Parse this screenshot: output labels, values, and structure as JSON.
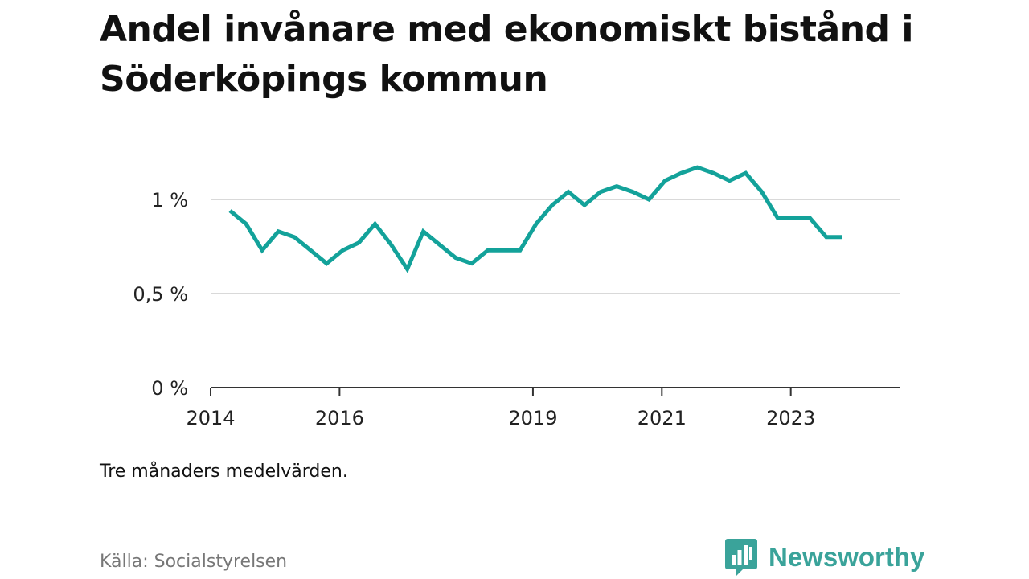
{
  "title": "Andel invånare med ekonomiskt bistånd i Söderköpings kommun",
  "note": "Tre månaders medelvärden.",
  "source": "Källa: Socialstyrelsen",
  "brand": {
    "name": "Newsworthy",
    "icon": "bar-chart-speech-bubble-icon",
    "color": "#3aa39a"
  },
  "colors": {
    "line": "#13a29a",
    "grid": "#d9d9d9",
    "axis": "#333333"
  },
  "chart_data": {
    "type": "line",
    "title": "Andel invånare med ekonomiskt bistånd i Söderköpings kommun",
    "xlabel": "",
    "ylabel": "",
    "ylim": [
      0,
      1.2
    ],
    "xlim": [
      2014,
      2024.7
    ],
    "grid": true,
    "y_ticks": [
      {
        "value": 0,
        "label": "0 %"
      },
      {
        "value": 0.5,
        "label": "0,5 %"
      },
      {
        "value": 1,
        "label": "1 %"
      }
    ],
    "x_ticks": [
      {
        "value": 2014,
        "label": "2014"
      },
      {
        "value": 2016,
        "label": "2016"
      },
      {
        "value": 2019,
        "label": "2019"
      },
      {
        "value": 2021,
        "label": "2021"
      },
      {
        "value": 2023,
        "label": "2023"
      }
    ],
    "series": [
      {
        "name": "",
        "x": [
          2014.3,
          2014.55,
          2014.8,
          2015.05,
          2015.3,
          2015.55,
          2015.8,
          2016.05,
          2016.3,
          2016.55,
          2016.8,
          2017.05,
          2017.3,
          2017.55,
          2017.8,
          2018.05,
          2018.3,
          2018.55,
          2018.8,
          2019.05,
          2019.3,
          2019.55,
          2019.8,
          2020.05,
          2020.3,
          2020.55,
          2020.8,
          2021.05,
          2021.3,
          2021.55,
          2021.8,
          2022.05,
          2022.3,
          2022.55,
          2022.8,
          2023.05,
          2023.3,
          2023.55,
          2023.8
        ],
        "values": [
          0.94,
          0.87,
          0.73,
          0.83,
          0.8,
          0.73,
          0.66,
          0.73,
          0.77,
          0.87,
          0.76,
          0.63,
          0.83,
          0.76,
          0.69,
          0.66,
          0.73,
          0.73,
          0.73,
          0.87,
          0.97,
          1.04,
          0.97,
          1.04,
          1.07,
          1.04,
          1.0,
          1.1,
          1.14,
          1.17,
          1.14,
          1.1,
          1.14,
          1.04,
          0.9,
          0.9,
          0.9,
          0.8,
          0.8
        ]
      }
    ]
  }
}
